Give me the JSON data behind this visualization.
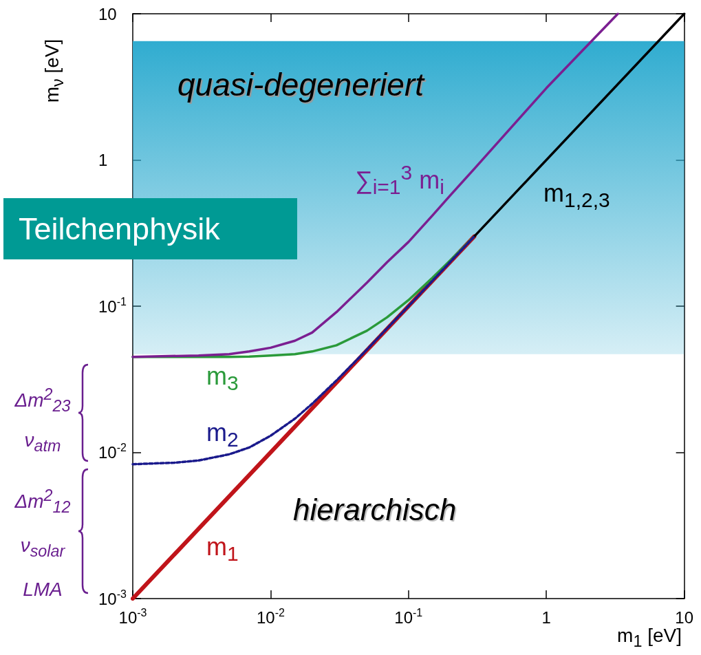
{
  "chart_data": {
    "type": "line",
    "xlabel": "m$_{1}$ [eV]",
    "ylabel": "m$_{ν}$ [eV]",
    "log": "xy",
    "xlim": [
      0.001,
      10
    ],
    "ylim": [
      0.001,
      10
    ],
    "xticks": [
      {
        "value": 0.001,
        "label": "10$^{-3}$"
      },
      {
        "value": 0.01,
        "label": "10$^{-2}$"
      },
      {
        "value": 0.1,
        "label": "10$^{-1}$"
      },
      1,
      10
    ],
    "yticks": [
      {
        "value": 0.001,
        "label": "10$^{-3}$"
      },
      {
        "value": 0.01,
        "label": "10$^{-2}$"
      },
      {
        "value": 0.1,
        "label": "10$^{-1}$"
      },
      1,
      10
    ],
    "marker": "none",
    "legend": false,
    "series": [
      {
        "name": "m$_{1}$",
        "color": "#c0141a",
        "x": [
          0.001,
          0.3
        ],
        "values": [
          0.001,
          0.3
        ]
      },
      {
        "name": "m$_{2}$",
        "color": "#1a1a8c",
        "line_style": "dashed",
        "x": [
          0.001,
          0.002,
          0.003,
          0.005,
          0.007,
          0.01,
          0.015,
          0.02,
          0.03,
          0.05,
          0.07,
          0.1,
          0.15,
          0.2,
          0.3
        ],
        "values": [
          0.0083,
          0.0085,
          0.0088,
          0.0097,
          0.0108,
          0.013,
          0.017,
          0.0215,
          0.031,
          0.0505,
          0.0705,
          0.1,
          0.15,
          0.2,
          0.3
        ]
      },
      {
        "name": "m$_{3}$",
        "color": "#2a9a3a",
        "x": [
          0.001,
          0.002,
          0.003,
          0.005,
          0.007,
          0.01,
          0.015,
          0.02,
          0.03,
          0.05,
          0.07,
          0.1,
          0.15,
          0.2,
          0.3
        ],
        "values": [
          0.045,
          0.045,
          0.045,
          0.045,
          0.0452,
          0.046,
          0.047,
          0.049,
          0.054,
          0.068,
          0.084,
          0.11,
          0.157,
          0.205,
          0.3
        ]
      },
      {
        "name": "m$_{1,2,3}$",
        "color": "#000000",
        "x": [
          0.3,
          10
        ],
        "values": [
          0.3,
          10
        ]
      },
      {
        "name": "∑$_{i=1}$$^{3}$ m$_{i}$",
        "color": "#7b1f91",
        "x": [
          0.001,
          0.003,
          0.005,
          0.007,
          0.01,
          0.015,
          0.02,
          0.03,
          0.05,
          0.07,
          0.1,
          0.15,
          0.2,
          0.3,
          1,
          3.3
        ],
        "values": [
          0.045,
          0.046,
          0.047,
          0.049,
          0.052,
          0.058,
          0.066,
          0.091,
          0.145,
          0.2,
          0.275,
          0.42,
          0.57,
          0.87,
          3.1,
          10
        ]
      }
    ],
    "bands": [
      {
        "axis": "y",
        "from": 0.047,
        "to": 6.5,
        "color": "#30acd0"
      }
    ],
    "annotations": [
      "quasi-degeneriert",
      "hierarchisch",
      "Teilchenphysik",
      "Δm$^{2}$$_{23}$\nν$_{atm}$",
      "Δm$^{2}$$_{12}$\nν$_{solar}$\nLMA"
    ]
  }
}
